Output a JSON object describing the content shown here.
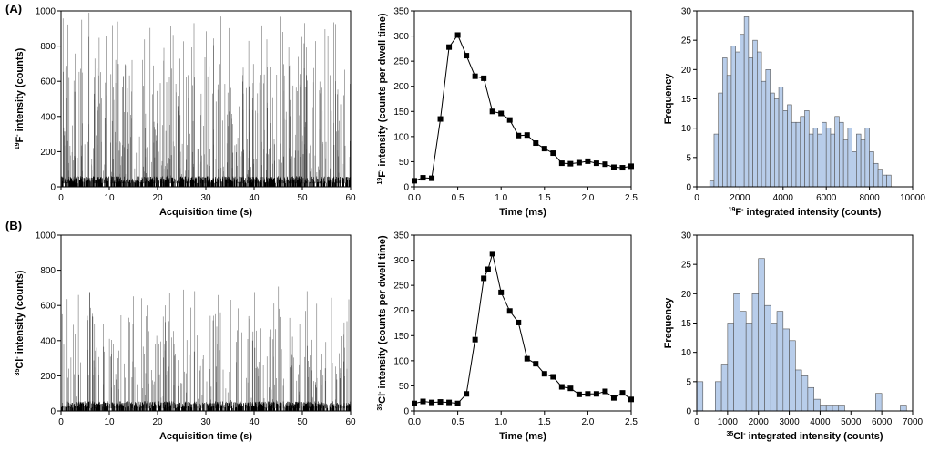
{
  "panel_labels": [
    "(A)",
    "(B)"
  ],
  "chart_data": [
    {
      "type": "line",
      "panel": "(A)",
      "series_kind": "spike_trace",
      "xlabel": "Acquisition time (s)",
      "ylabel_element": "F",
      "ylabel_mass": "19",
      "ylabel_charge": "-",
      "ylabel_rest": " intensity (counts)",
      "xlim": [
        0,
        60
      ],
      "ylim": [
        0,
        1000
      ],
      "xticks": [
        0,
        10,
        20,
        30,
        40,
        50,
        60
      ],
      "yticks": [
        0,
        200,
        400,
        600,
        800,
        1000
      ],
      "spike_count": 420,
      "spike_max": 1000,
      "baseline": 20
    },
    {
      "type": "line",
      "panel": "(A)",
      "series_kind": "markers",
      "xlabel": "Time (ms)",
      "ylabel_element": "F",
      "ylabel_mass": "19",
      "ylabel_charge": "-",
      "ylabel_rest": " intensity (counts per dwell time)",
      "xlim": [
        0,
        2.5
      ],
      "ylim": [
        0,
        350
      ],
      "xticks": [
        0.0,
        0.5,
        1.0,
        1.5,
        2.0,
        2.5
      ],
      "yticks": [
        0,
        50,
        100,
        150,
        200,
        250,
        300,
        350
      ],
      "x": [
        0.0,
        0.1,
        0.2,
        0.3,
        0.4,
        0.5,
        0.6,
        0.7,
        0.8,
        0.9,
        1.0,
        1.1,
        1.2,
        1.3,
        1.4,
        1.5,
        1.6,
        1.7,
        1.8,
        1.9,
        2.0,
        2.1,
        2.2,
        2.3,
        2.4,
        2.5
      ],
      "y": [
        12,
        18,
        17,
        135,
        278,
        302,
        261,
        220,
        216,
        150,
        146,
        133,
        102,
        103,
        87,
        76,
        67,
        47,
        46,
        48,
        51,
        47,
        45,
        39,
        38,
        41
      ]
    },
    {
      "type": "bar",
      "panel": "(A)",
      "series_kind": "histogram",
      "xlabel_element": "F",
      "xlabel_mass": "19",
      "xlabel_charge": "-",
      "xlabel_rest": " integrated intensity (counts)",
      "ylabel": "Frequency",
      "xlim": [
        0,
        10000
      ],
      "ylim": [
        0,
        30
      ],
      "xticks": [
        0,
        2000,
        4000,
        6000,
        8000,
        10000
      ],
      "yticks": [
        0,
        5,
        10,
        15,
        20,
        25,
        30
      ],
      "bin_start": 600,
      "bin_width": 200,
      "values": [
        1,
        9,
        16,
        22,
        19,
        24,
        23,
        26,
        29,
        22,
        25,
        23,
        18,
        20,
        16,
        15,
        17,
        13,
        14,
        11,
        11,
        12,
        13,
        9,
        10,
        9,
        11,
        10,
        9,
        12,
        11,
        8,
        10,
        6,
        9,
        8,
        10,
        6,
        4,
        3,
        2,
        2
      ]
    },
    {
      "type": "line",
      "panel": "(B)",
      "series_kind": "spike_trace",
      "xlabel": "Acquisition time (s)",
      "ylabel_element": "Cl",
      "ylabel_mass": "35",
      "ylabel_charge": "-",
      "ylabel_rest": " intensity (counts)",
      "xlim": [
        0,
        60
      ],
      "ylim": [
        0,
        1000
      ],
      "xticks": [
        0,
        10,
        20,
        30,
        40,
        50,
        60
      ],
      "yticks": [
        0,
        200,
        400,
        600,
        800,
        1000
      ],
      "spike_count": 260,
      "spike_max": 720,
      "baseline": 15
    },
    {
      "type": "line",
      "panel": "(B)",
      "series_kind": "markers",
      "xlabel": "Time (ms)",
      "ylabel_element": "Cl",
      "ylabel_mass": "35",
      "ylabel_charge": "-",
      "ylabel_rest": " intensity (counts per dwell time)",
      "xlim": [
        0,
        2.5
      ],
      "ylim": [
        0,
        350
      ],
      "xticks": [
        0.0,
        0.5,
        1.0,
        1.5,
        2.0,
        2.5
      ],
      "yticks": [
        0,
        50,
        100,
        150,
        200,
        250,
        300,
        350
      ],
      "x": [
        0.0,
        0.1,
        0.2,
        0.3,
        0.4,
        0.5,
        0.6,
        0.7,
        0.8,
        0.85,
        0.9,
        1.0,
        1.1,
        1.2,
        1.3,
        1.4,
        1.5,
        1.6,
        1.7,
        1.8,
        1.9,
        2.0,
        2.1,
        2.2,
        2.3,
        2.4,
        2.5
      ],
      "y": [
        15,
        19,
        17,
        18,
        17,
        15,
        34,
        142,
        264,
        282,
        313,
        236,
        199,
        176,
        104,
        94,
        74,
        68,
        48,
        45,
        33,
        34,
        34,
        39,
        26,
        36,
        23
      ]
    },
    {
      "type": "bar",
      "panel": "(B)",
      "series_kind": "histogram",
      "xlabel_element": "Cl",
      "xlabel_mass": "35",
      "xlabel_charge": "-",
      "xlabel_rest": " integrated intensity (counts)",
      "ylabel": "Frequency",
      "xlim": [
        0,
        7000
      ],
      "ylim": [
        0,
        30
      ],
      "xticks": [
        0,
        1000,
        2000,
        3000,
        4000,
        5000,
        6000,
        7000
      ],
      "yticks": [
        0,
        5,
        10,
        15,
        20,
        25,
        30
      ],
      "bin_start": 0,
      "bin_width": 200,
      "values": [
        5,
        0,
        0,
        5,
        8,
        15,
        20,
        17,
        15,
        20,
        26,
        18,
        15,
        17,
        14,
        12,
        7,
        6,
        4,
        2,
        1,
        1,
        1,
        1,
        0,
        0,
        0,
        0,
        0,
        3,
        0,
        0,
        0,
        1,
        0
      ]
    }
  ]
}
